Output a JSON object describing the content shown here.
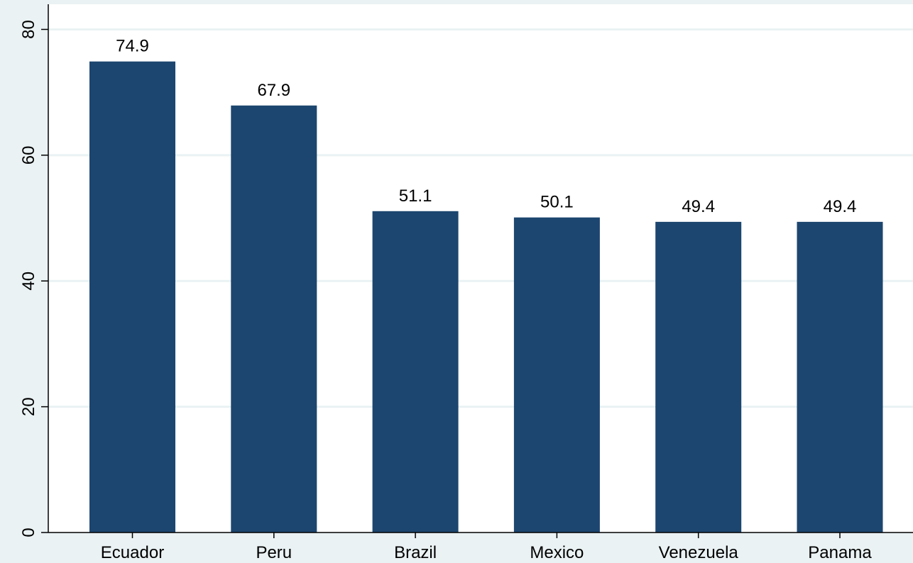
{
  "chart_data": {
    "type": "bar",
    "categories": [
      "Ecuador",
      "Peru",
      "Brazil",
      "Mexico",
      "Venezuela",
      "Panama"
    ],
    "values": [
      74.9,
      67.9,
      51.1,
      50.1,
      49.4,
      49.4
    ],
    "value_labels": [
      "74.9",
      "67.9",
      "51.1",
      "50.1",
      "49.4",
      "49.4"
    ],
    "y_ticks": [
      "0",
      "20",
      "40",
      "60",
      "80"
    ],
    "ylim": [
      0,
      84
    ],
    "grid": true,
    "colors": {
      "background": "#eaf2f3",
      "plot_background": "#ffffff",
      "bar": "#1c466f",
      "grid": "#eaf2f3",
      "axis": "#000000"
    }
  }
}
